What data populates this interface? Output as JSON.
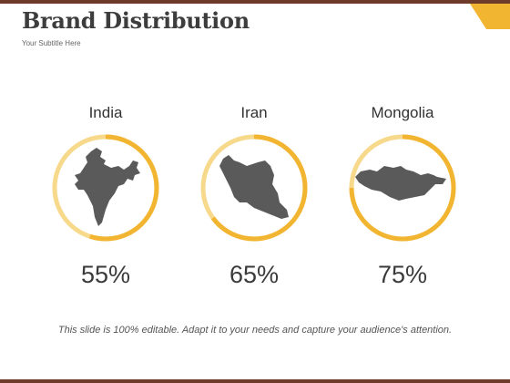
{
  "slide": {
    "title": "Brand Distribution",
    "subtitle": "Your Subtitle Here",
    "footer": "This slide is 100% editable. Adapt it to your needs and capture your audience's attention."
  },
  "items": [
    {
      "name": "India",
      "percent_label": "55%",
      "value": 55,
      "icon": "india-map-icon"
    },
    {
      "name": "Iran",
      "percent_label": "65%",
      "value": 65,
      "icon": "iran-map-icon"
    },
    {
      "name": "Mongolia",
      "percent_label": "75%",
      "value": 75,
      "icon": "mongolia-map-icon"
    }
  ],
  "colors": {
    "accent": "#f2b531",
    "accent_light": "#f7d98c",
    "map": "#5a5a5a",
    "bar": "#6e3b2a"
  }
}
